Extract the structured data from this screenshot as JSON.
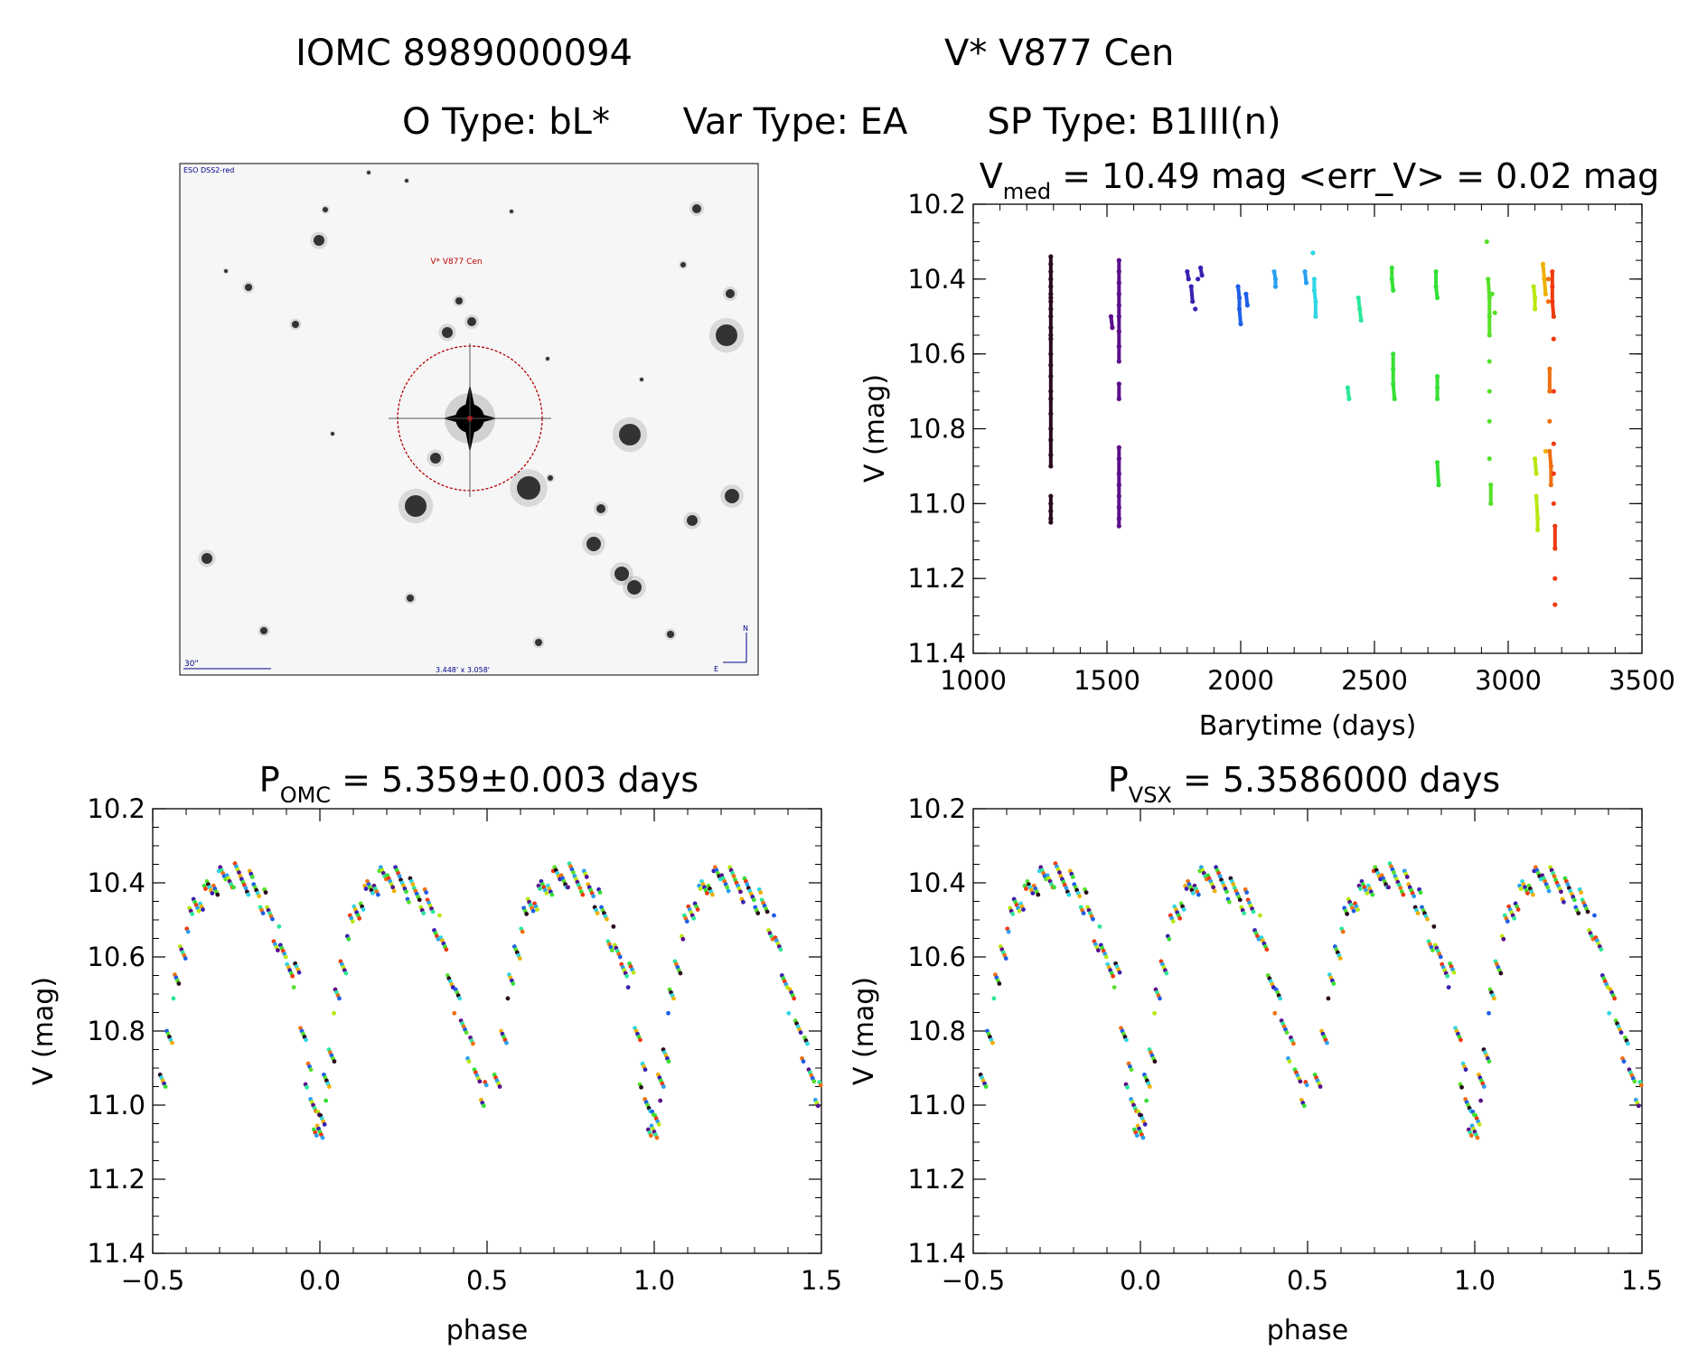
{
  "header": {
    "line1_id": "IOMC 8989000094",
    "line1_name": "V* V877 Cen",
    "line2_otype": "O Type: bL*",
    "line2_vartype": "Var Type: EA",
    "line2_sptype": "SP Type: B1III(n)"
  },
  "sky_image": {
    "survey_label": "ESO DSS2-red",
    "target_label": "V* V877 Cen",
    "scale_label": "30\"",
    "fov_label": "3.448' x 3.058'",
    "compass_n": "N",
    "compass_e": "E",
    "colors": {
      "circle": "#b00000",
      "text": "#00008b",
      "target_text": "#c00000"
    }
  },
  "chart_data": [
    {
      "type": "scatter",
      "panel": "light-curve",
      "title_main": "V",
      "title_sub": "med",
      "title_rest": " = 10.49 mag <err_V> = 0.02 mag",
      "xlabel": "Barytime (days)",
      "ylabel": "V (mag)",
      "xlim": [
        1000,
        3500
      ],
      "ylim": [
        10.2,
        11.4
      ],
      "y_inverted": true,
      "x_ticks": [
        1000,
        1500,
        2000,
        2500,
        3000,
        3500
      ],
      "y_ticks": [
        10.2,
        10.4,
        10.6,
        10.8,
        11.0,
        11.2,
        11.4
      ],
      "y_tick_labels": [
        "10.2",
        "10.4",
        "10.6",
        "10.8",
        "11.0",
        "11.2",
        "11.4"
      ],
      "grid": false,
      "series": [
        {
          "color": "#2a0a1e",
          "x": [
            1290,
            1290,
            1290,
            1290,
            1290,
            1290,
            1290,
            1290,
            1290,
            1290,
            1290,
            1290,
            1290,
            1290,
            1290,
            1290,
            1290,
            1290,
            1290,
            1290,
            1290,
            1290,
            1290,
            1290,
            1290,
            1290,
            1290,
            1290
          ],
          "y": [
            10.34,
            10.36,
            10.38,
            10.4,
            10.42,
            10.44,
            10.46,
            10.48,
            10.5,
            10.53,
            10.56,
            10.6,
            10.63,
            10.66,
            10.7,
            10.72,
            10.76,
            10.8,
            10.83,
            10.87,
            10.9,
            10.98,
            11.0,
            11.02,
            11.04,
            11.05,
            10.55,
            10.45
          ]
        },
        {
          "color": "#5a0f8c",
          "x": [
            1515,
            1520,
            1545,
            1545,
            1545,
            1545,
            1545,
            1545,
            1545,
            1545,
            1545,
            1545,
            1545,
            1545,
            1545,
            1545,
            1545,
            1545,
            1545,
            1545,
            1545
          ],
          "y": [
            10.5,
            10.53,
            10.35,
            10.38,
            10.41,
            10.44,
            10.47,
            10.5,
            10.54,
            10.58,
            10.62,
            10.68,
            10.72,
            10.85,
            10.88,
            10.92,
            10.95,
            10.98,
            11.01,
            11.04,
            11.06
          ]
        },
        {
          "color": "#3a1fb0",
          "x": [
            1800,
            1805,
            1815,
            1820,
            1830,
            1840,
            1850,
            1855
          ],
          "y": [
            10.38,
            10.4,
            10.42,
            10.46,
            10.48,
            10.4,
            10.37,
            10.39
          ]
        },
        {
          "color": "#1f5fe8",
          "x": [
            1990,
            1995,
            1995,
            2000,
            2020,
            2025
          ],
          "y": [
            10.42,
            10.45,
            10.48,
            10.52,
            10.44,
            10.47
          ]
        },
        {
          "color": "#2aa0f0",
          "x": [
            2125,
            2130,
            2130,
            2240,
            2245
          ],
          "y": [
            10.38,
            10.4,
            10.42,
            10.38,
            10.41
          ]
        },
        {
          "color": "#2fd6e6",
          "x": [
            2270,
            2275,
            2275,
            2280,
            2280
          ],
          "y": [
            10.33,
            10.4,
            10.43,
            10.46,
            10.5
          ]
        },
        {
          "color": "#2ae89a",
          "x": [
            2400,
            2405,
            2440,
            2445,
            2450
          ],
          "y": [
            10.69,
            10.72,
            10.45,
            10.48,
            10.51
          ]
        },
        {
          "color": "#35e035",
          "x": [
            2565,
            2565,
            2570,
            2570,
            2570,
            2570,
            2575,
            2730,
            2730,
            2735,
            2735,
            2735,
            2735,
            2735,
            2740
          ],
          "y": [
            10.37,
            10.4,
            10.43,
            10.6,
            10.64,
            10.68,
            10.72,
            10.38,
            10.42,
            10.45,
            10.66,
            10.69,
            10.72,
            10.89,
            10.95
          ]
        },
        {
          "color": "#56e02a",
          "x": [
            2920,
            2925,
            2930,
            2930,
            2930,
            2930,
            2930,
            2930,
            2930,
            2935,
            2935,
            2940,
            2950
          ],
          "y": [
            10.3,
            10.4,
            10.45,
            10.5,
            10.55,
            10.62,
            10.7,
            10.78,
            10.88,
            10.95,
            11.0,
            10.44,
            10.49
          ]
        },
        {
          "color": "#b8e80f",
          "x": [
            3095,
            3100,
            3100,
            3100,
            3105,
            3105,
            3110,
            3110
          ],
          "y": [
            10.42,
            10.45,
            10.48,
            10.88,
            10.92,
            10.98,
            11.04,
            11.07
          ]
        },
        {
          "color": "#f0b000",
          "x": [
            3130,
            3135,
            3140,
            3140
          ],
          "y": [
            10.36,
            10.4,
            10.44,
            10.86
          ]
        },
        {
          "color": "#f07010",
          "x": [
            3150,
            3150,
            3155,
            3155,
            3155,
            3155,
            3160,
            3160
          ],
          "y": [
            10.4,
            10.46,
            10.64,
            10.7,
            10.78,
            10.86,
            10.9,
            10.95
          ]
        },
        {
          "color": "#f03a10",
          "x": [
            3165,
            3165,
            3165,
            3170,
            3170,
            3170,
            3170,
            3170,
            3170,
            3175,
            3175,
            3175,
            3175
          ],
          "y": [
            10.38,
            10.42,
            10.46,
            10.5,
            10.56,
            10.7,
            10.84,
            10.92,
            11.0,
            11.06,
            11.12,
            11.2,
            11.27
          ]
        }
      ]
    },
    {
      "type": "scatter",
      "panel": "phase-omc",
      "title_main": "P",
      "title_sub": "OMC",
      "title_rest": " = 5.359±0.003 days",
      "xlabel": "phase",
      "ylabel": "V (mag)",
      "xlim": [
        -0.5,
        1.5
      ],
      "ylim": [
        10.2,
        11.4
      ],
      "y_inverted": true,
      "x_ticks": [
        -0.5,
        0.0,
        0.5,
        1.0,
        1.5
      ],
      "x_tick_labels": [
        "−0.5",
        "0.0",
        "0.5",
        "1.0",
        "1.5"
      ],
      "y_ticks": [
        10.2,
        10.4,
        10.6,
        10.8,
        11.0,
        11.2,
        11.4
      ],
      "y_tick_labels": [
        "10.2",
        "10.4",
        "10.6",
        "10.8",
        "11.0",
        "11.2",
        "11.4"
      ],
      "grid": false
    },
    {
      "type": "scatter",
      "panel": "phase-vsx",
      "title_main": "P",
      "title_sub": "VSX",
      "title_rest": " = 5.3586000 days",
      "xlabel": "phase",
      "ylabel": "V (mag)",
      "xlim": [
        -0.5,
        1.5
      ],
      "ylim": [
        10.2,
        11.4
      ],
      "y_inverted": true,
      "x_ticks": [
        -0.5,
        0.0,
        0.5,
        1.0,
        1.5
      ],
      "x_tick_labels": [
        "−0.5",
        "0.0",
        "0.5",
        "1.0",
        "1.5"
      ],
      "y_ticks": [
        10.2,
        10.4,
        10.6,
        10.8,
        11.0,
        11.2,
        11.4
      ],
      "y_tick_labels": [
        "10.2",
        "10.4",
        "10.6",
        "10.8",
        "11.0",
        "11.2",
        "11.4"
      ],
      "grid": false
    }
  ],
  "phase_curve": {
    "colors": [
      "#2a0a1e",
      "#5a0f8c",
      "#3a1fb0",
      "#1f5fe8",
      "#2aa0f0",
      "#2fd6e6",
      "#2ae89a",
      "#35e035",
      "#56e02a",
      "#b8e80f",
      "#f0b000",
      "#f07010",
      "#f03a10"
    ],
    "phase": [
      -0.47,
      -0.45,
      -0.43,
      -0.41,
      -0.39,
      -0.37,
      -0.35,
      -0.33,
      -0.31,
      -0.29,
      -0.27,
      -0.25,
      -0.23,
      -0.21,
      -0.19,
      -0.17,
      -0.15,
      -0.13,
      -0.11,
      -0.09,
      -0.07,
      -0.05,
      -0.035,
      -0.02,
      -0.01,
      0.0,
      0.01,
      0.02,
      0.035,
      0.05,
      0.07,
      0.09,
      0.11,
      0.13,
      0.15,
      0.17,
      0.19,
      0.21,
      0.23,
      0.25,
      0.27,
      0.29,
      0.31,
      0.33,
      0.35,
      0.37,
      0.39,
      0.41,
      0.43,
      0.45,
      0.47,
      0.49
    ],
    "mag": [
      10.95,
      10.8,
      10.68,
      10.58,
      10.5,
      10.46,
      10.44,
      10.42,
      10.4,
      10.39,
      10.38,
      10.38,
      10.39,
      10.4,
      10.42,
      10.45,
      10.49,
      10.55,
      10.6,
      10.62,
      10.65,
      10.8,
      10.92,
      11.0,
      11.05,
      11.08,
      11.02,
      10.95,
      10.85,
      10.72,
      10.62,
      10.52,
      10.48,
      10.44,
      10.42,
      10.4,
      10.39,
      10.38,
      10.39,
      10.4,
      10.42,
      10.43,
      10.45,
      10.47,
      10.52,
      10.58,
      10.65,
      10.72,
      10.78,
      10.85,
      10.92,
      10.97
    ]
  }
}
